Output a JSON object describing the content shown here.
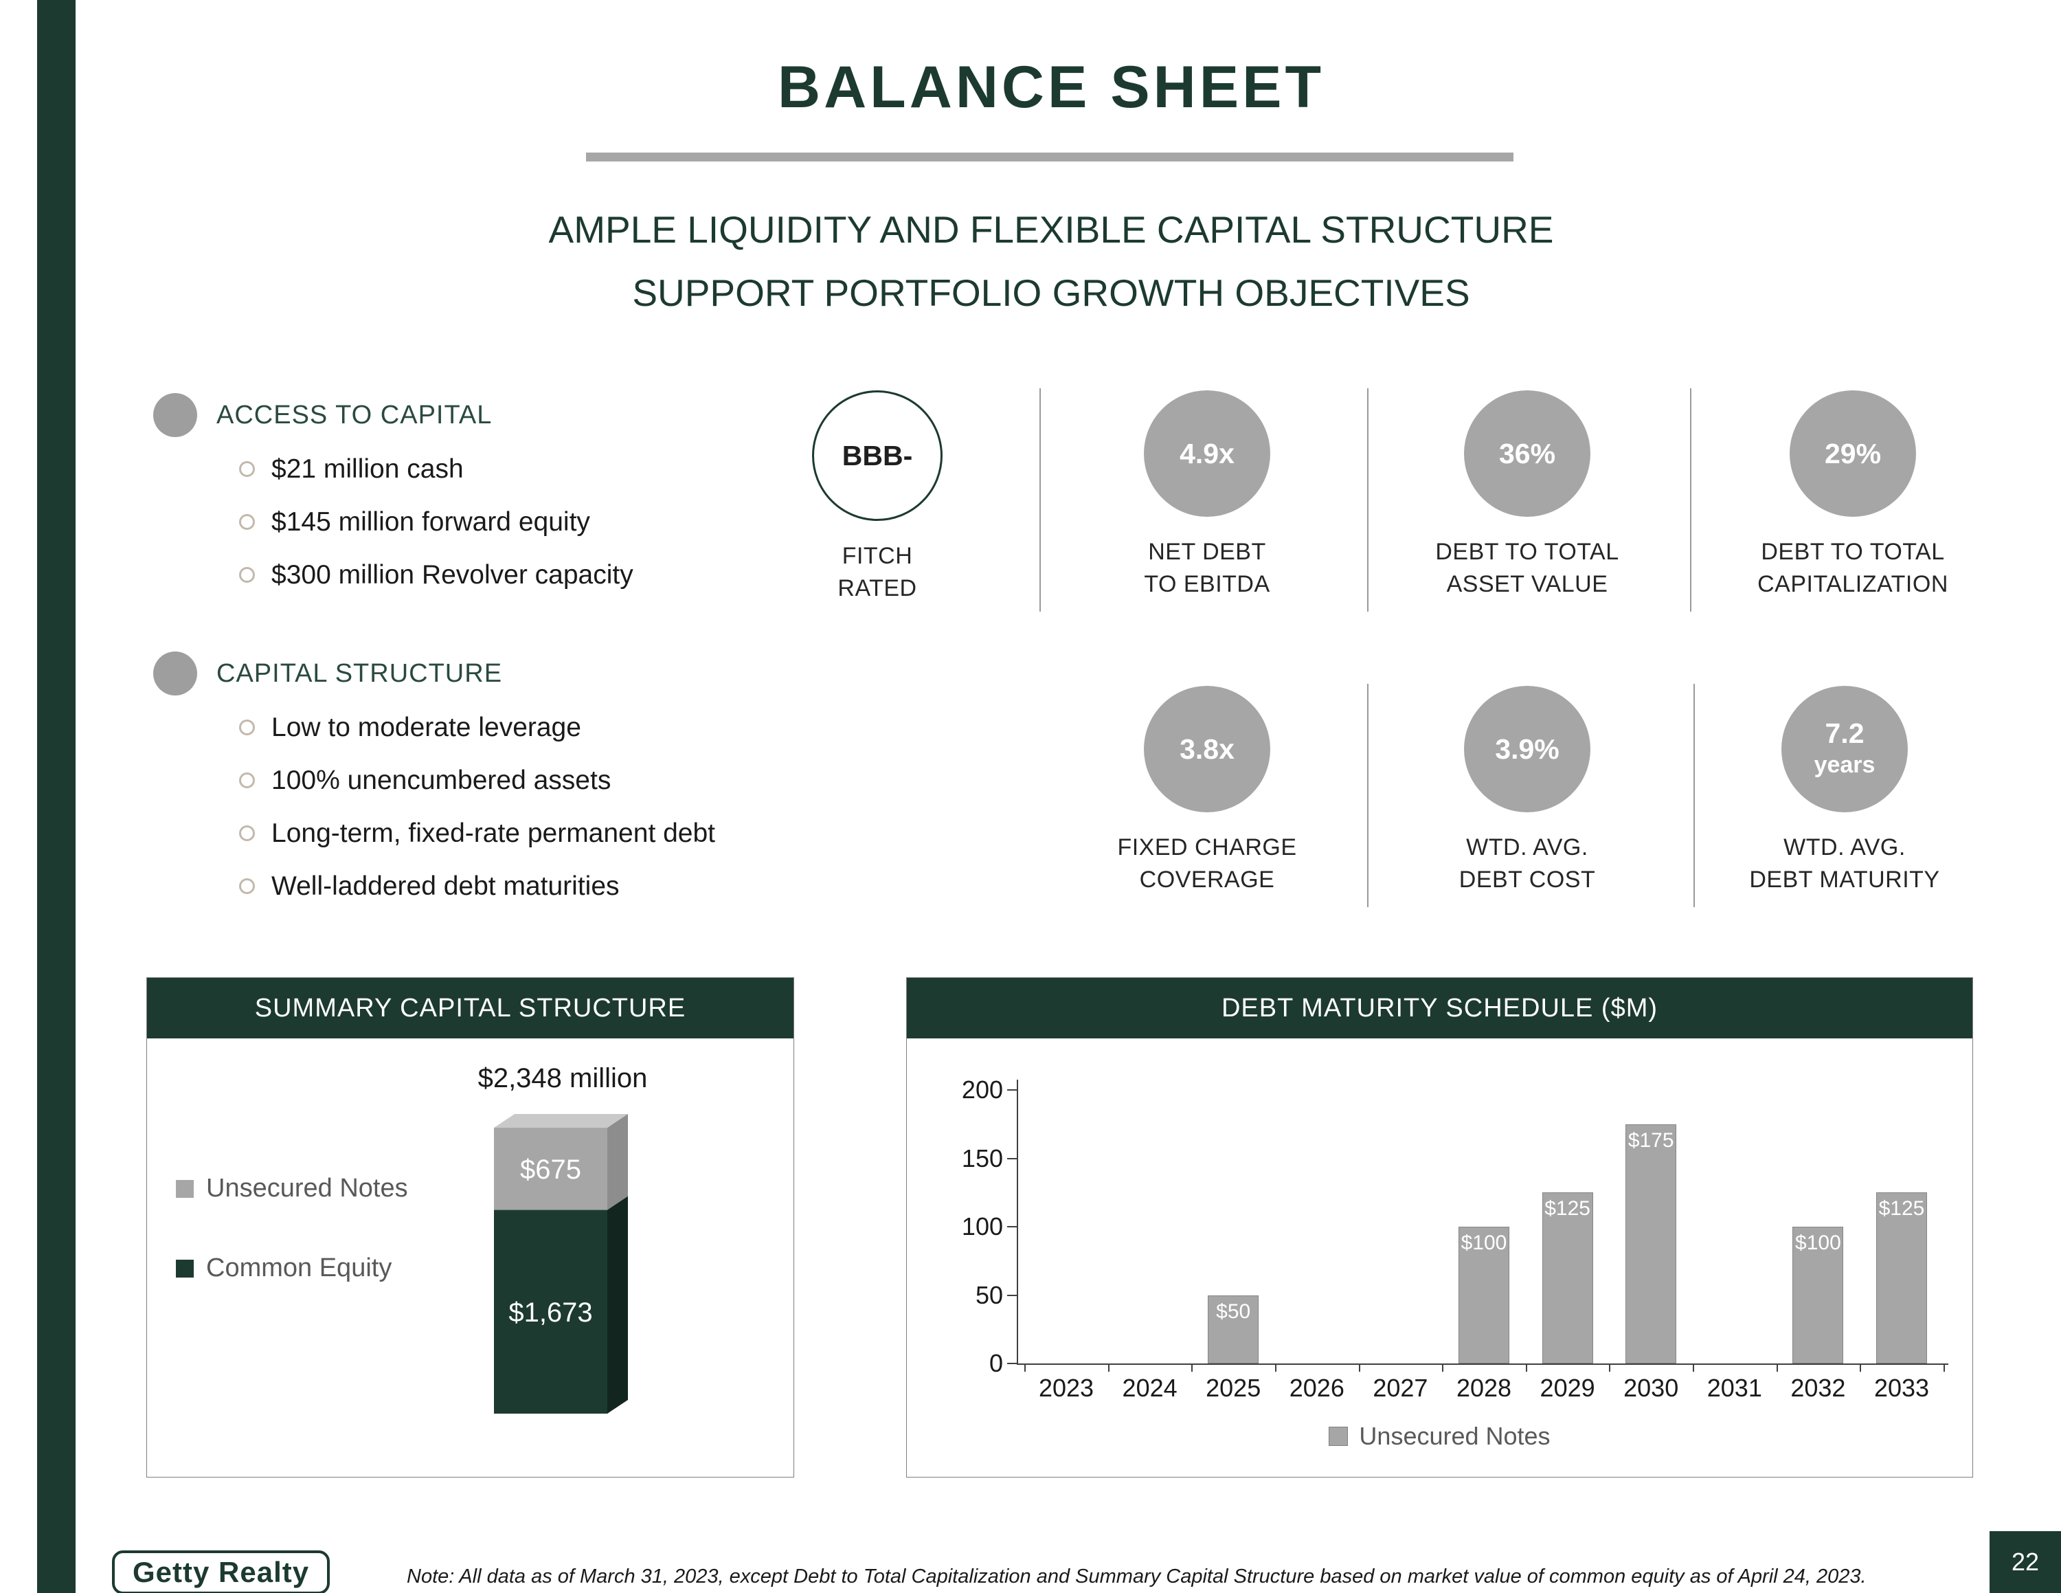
{
  "title": "BALANCE SHEET",
  "subtitle_line1": "AMPLE LIQUIDITY AND FLEXIBLE CAPITAL STRUCTURE",
  "subtitle_line2": "SUPPORT PORTFOLIO GROWTH OBJECTIVES",
  "colors": {
    "brand_green": "#1c3a30",
    "metric_gray": "#a6a6a6",
    "legend_text_gray": "#595959"
  },
  "sections": [
    {
      "heading": "ACCESS TO CAPITAL",
      "items": [
        "$21 million cash",
        "$145 million forward equity",
        "$300 million Revolver capacity"
      ]
    },
    {
      "heading": "CAPITAL STRUCTURE",
      "items": [
        "Low to moderate leverage",
        "100% unencumbered assets",
        "Long-term, fixed-rate permanent debt",
        "Well-laddered debt maturities"
      ]
    }
  ],
  "metrics_row1": [
    {
      "value": "BBB-",
      "label1": "FITCH",
      "label2": "RATED"
    },
    {
      "value": "4.9x",
      "label1": "NET DEBT",
      "label2": "TO EBITDA"
    },
    {
      "value": "36%",
      "label1": "DEBT TO TOTAL",
      "label2": "ASSET VALUE"
    },
    {
      "value": "29%",
      "label1": "DEBT TO TOTAL",
      "label2": "CAPITALIZATION"
    }
  ],
  "metrics_row2": [
    {
      "value": "3.8x",
      "label1": "FIXED CHARGE",
      "label2": "COVERAGE"
    },
    {
      "value": "3.9%",
      "label1": "WTD. AVG.",
      "label2": "DEBT COST"
    },
    {
      "value": "7.2",
      "value2": "years",
      "label1": "WTD. AVG.",
      "label2": "DEBT MATURITY"
    }
  ],
  "summary": {
    "header": "SUMMARY CAPITAL STRUCTURE",
    "total_label": "$2,348 million",
    "chart_data": {
      "type": "stacked-bar",
      "total": 2348,
      "top_color": "#c9c9c9",
      "segments": [
        {
          "name": "Unsecured Notes",
          "value": 675,
          "label": "$675",
          "color": "#a6a6a6",
          "side_color": "#8d8d8d"
        },
        {
          "name": "Common Equity",
          "value": 1673,
          "label": "$1,673",
          "color": "#1c3a30",
          "side_color": "#12261f"
        }
      ]
    },
    "legend": [
      {
        "label": "Unsecured Notes",
        "color": "#a6a6a6"
      },
      {
        "label": "Common Equity",
        "color": "#1c3a30"
      }
    ]
  },
  "maturity": {
    "header": "DEBT MATURITY SCHEDULE ($M)",
    "chart_data": {
      "type": "bar",
      "categories": [
        "2023",
        "2024",
        "2025",
        "2026",
        "2027",
        "2028",
        "2029",
        "2030",
        "2031",
        "2032",
        "2033"
      ],
      "values": [
        0,
        0,
        50,
        0,
        0,
        100,
        125,
        175,
        0,
        100,
        125
      ],
      "bar_labels": [
        "",
        "",
        "$50",
        "",
        "",
        "$100",
        "$125",
        "$175",
        "",
        "$100",
        "$125"
      ],
      "ylim": [
        0,
        200
      ],
      "yticks": [
        0,
        50,
        100,
        150,
        200
      ],
      "bar_color": "#a6a6a6",
      "legend": "Unsecured Notes"
    }
  },
  "footer": {
    "logo": "Getty Realty",
    "note": "Note: All data as of March 31, 2023, except Debt to Total Capitalization and Summary Capital Structure based on market value of common equity as of April 24, 2023.",
    "page_number": "22"
  }
}
